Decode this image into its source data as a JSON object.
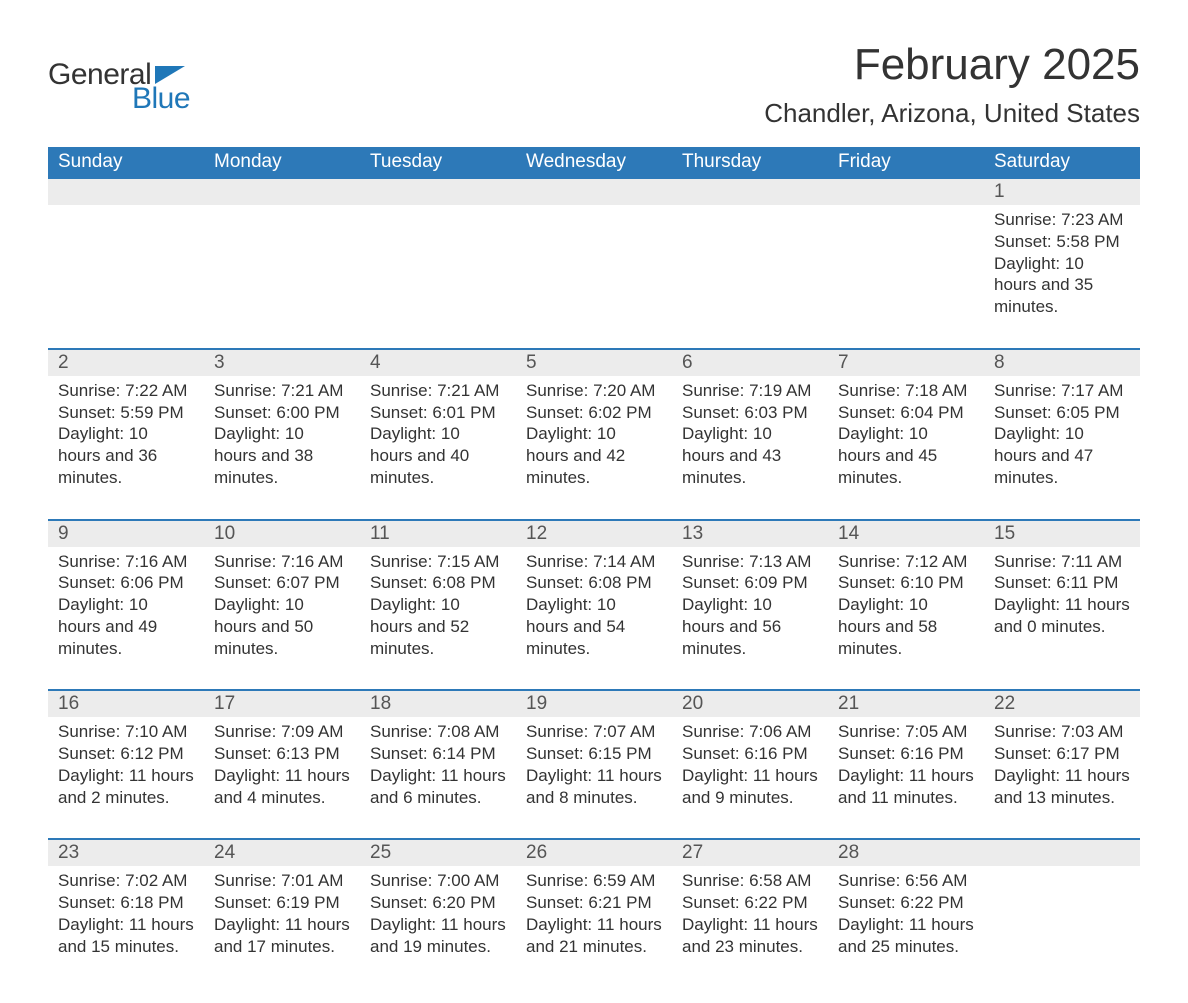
{
  "brand": {
    "text1": "General",
    "text2": "Blue",
    "color_dark": "#333333",
    "color_blue": "#1f77b8"
  },
  "header": {
    "month_title": "February 2025",
    "location": "Chandler, Arizona, United States"
  },
  "style": {
    "header_bg": "#2d79b8",
    "header_fg": "#ffffff",
    "band_bg": "#ececec",
    "rule_color": "#2d79b8",
    "body_bg": "#ffffff",
    "text_color": "#333333",
    "daynum_color": "#555555",
    "weekday_fontsize": 19,
    "title_fontsize": 44,
    "location_fontsize": 26,
    "body_fontsize": 17
  },
  "weekdays": [
    "Sunday",
    "Monday",
    "Tuesday",
    "Wednesday",
    "Thursday",
    "Friday",
    "Saturday"
  ],
  "weeks": [
    {
      "days": [
        {
          "num": "",
          "lines": []
        },
        {
          "num": "",
          "lines": []
        },
        {
          "num": "",
          "lines": []
        },
        {
          "num": "",
          "lines": []
        },
        {
          "num": "",
          "lines": []
        },
        {
          "num": "",
          "lines": []
        },
        {
          "num": "1",
          "lines": [
            "Sunrise: 7:23 AM",
            "Sunset: 5:58 PM",
            "Daylight: 10 hours and 35 minutes."
          ]
        }
      ]
    },
    {
      "days": [
        {
          "num": "2",
          "lines": [
            "Sunrise: 7:22 AM",
            "Sunset: 5:59 PM",
            "Daylight: 10 hours and 36 minutes."
          ]
        },
        {
          "num": "3",
          "lines": [
            "Sunrise: 7:21 AM",
            "Sunset: 6:00 PM",
            "Daylight: 10 hours and 38 minutes."
          ]
        },
        {
          "num": "4",
          "lines": [
            "Sunrise: 7:21 AM",
            "Sunset: 6:01 PM",
            "Daylight: 10 hours and 40 minutes."
          ]
        },
        {
          "num": "5",
          "lines": [
            "Sunrise: 7:20 AM",
            "Sunset: 6:02 PM",
            "Daylight: 10 hours and 42 minutes."
          ]
        },
        {
          "num": "6",
          "lines": [
            "Sunrise: 7:19 AM",
            "Sunset: 6:03 PM",
            "Daylight: 10 hours and 43 minutes."
          ]
        },
        {
          "num": "7",
          "lines": [
            "Sunrise: 7:18 AM",
            "Sunset: 6:04 PM",
            "Daylight: 10 hours and 45 minutes."
          ]
        },
        {
          "num": "8",
          "lines": [
            "Sunrise: 7:17 AM",
            "Sunset: 6:05 PM",
            "Daylight: 10 hours and 47 minutes."
          ]
        }
      ]
    },
    {
      "days": [
        {
          "num": "9",
          "lines": [
            "Sunrise: 7:16 AM",
            "Sunset: 6:06 PM",
            "Daylight: 10 hours and 49 minutes."
          ]
        },
        {
          "num": "10",
          "lines": [
            "Sunrise: 7:16 AM",
            "Sunset: 6:07 PM",
            "Daylight: 10 hours and 50 minutes."
          ]
        },
        {
          "num": "11",
          "lines": [
            "Sunrise: 7:15 AM",
            "Sunset: 6:08 PM",
            "Daylight: 10 hours and 52 minutes."
          ]
        },
        {
          "num": "12",
          "lines": [
            "Sunrise: 7:14 AM",
            "Sunset: 6:08 PM",
            "Daylight: 10 hours and 54 minutes."
          ]
        },
        {
          "num": "13",
          "lines": [
            "Sunrise: 7:13 AM",
            "Sunset: 6:09 PM",
            "Daylight: 10 hours and 56 minutes."
          ]
        },
        {
          "num": "14",
          "lines": [
            "Sunrise: 7:12 AM",
            "Sunset: 6:10 PM",
            "Daylight: 10 hours and 58 minutes."
          ]
        },
        {
          "num": "15",
          "lines": [
            "Sunrise: 7:11 AM",
            "Sunset: 6:11 PM",
            "Daylight: 11 hours and 0 minutes."
          ]
        }
      ]
    },
    {
      "days": [
        {
          "num": "16",
          "lines": [
            "Sunrise: 7:10 AM",
            "Sunset: 6:12 PM",
            "Daylight: 11 hours and 2 minutes."
          ]
        },
        {
          "num": "17",
          "lines": [
            "Sunrise: 7:09 AM",
            "Sunset: 6:13 PM",
            "Daylight: 11 hours and 4 minutes."
          ]
        },
        {
          "num": "18",
          "lines": [
            "Sunrise: 7:08 AM",
            "Sunset: 6:14 PM",
            "Daylight: 11 hours and 6 minutes."
          ]
        },
        {
          "num": "19",
          "lines": [
            "Sunrise: 7:07 AM",
            "Sunset: 6:15 PM",
            "Daylight: 11 hours and 8 minutes."
          ]
        },
        {
          "num": "20",
          "lines": [
            "Sunrise: 7:06 AM",
            "Sunset: 6:16 PM",
            "Daylight: 11 hours and 9 minutes."
          ]
        },
        {
          "num": "21",
          "lines": [
            "Sunrise: 7:05 AM",
            "Sunset: 6:16 PM",
            "Daylight: 11 hours and 11 minutes."
          ]
        },
        {
          "num": "22",
          "lines": [
            "Sunrise: 7:03 AM",
            "Sunset: 6:17 PM",
            "Daylight: 11 hours and 13 minutes."
          ]
        }
      ]
    },
    {
      "days": [
        {
          "num": "23",
          "lines": [
            "Sunrise: 7:02 AM",
            "Sunset: 6:18 PM",
            "Daylight: 11 hours and 15 minutes."
          ]
        },
        {
          "num": "24",
          "lines": [
            "Sunrise: 7:01 AM",
            "Sunset: 6:19 PM",
            "Daylight: 11 hours and 17 minutes."
          ]
        },
        {
          "num": "25",
          "lines": [
            "Sunrise: 7:00 AM",
            "Sunset: 6:20 PM",
            "Daylight: 11 hours and 19 minutes."
          ]
        },
        {
          "num": "26",
          "lines": [
            "Sunrise: 6:59 AM",
            "Sunset: 6:21 PM",
            "Daylight: 11 hours and 21 minutes."
          ]
        },
        {
          "num": "27",
          "lines": [
            "Sunrise: 6:58 AM",
            "Sunset: 6:22 PM",
            "Daylight: 11 hours and 23 minutes."
          ]
        },
        {
          "num": "28",
          "lines": [
            "Sunrise: 6:56 AM",
            "Sunset: 6:22 PM",
            "Daylight: 11 hours and 25 minutes."
          ]
        },
        {
          "num": "",
          "lines": []
        }
      ]
    }
  ]
}
